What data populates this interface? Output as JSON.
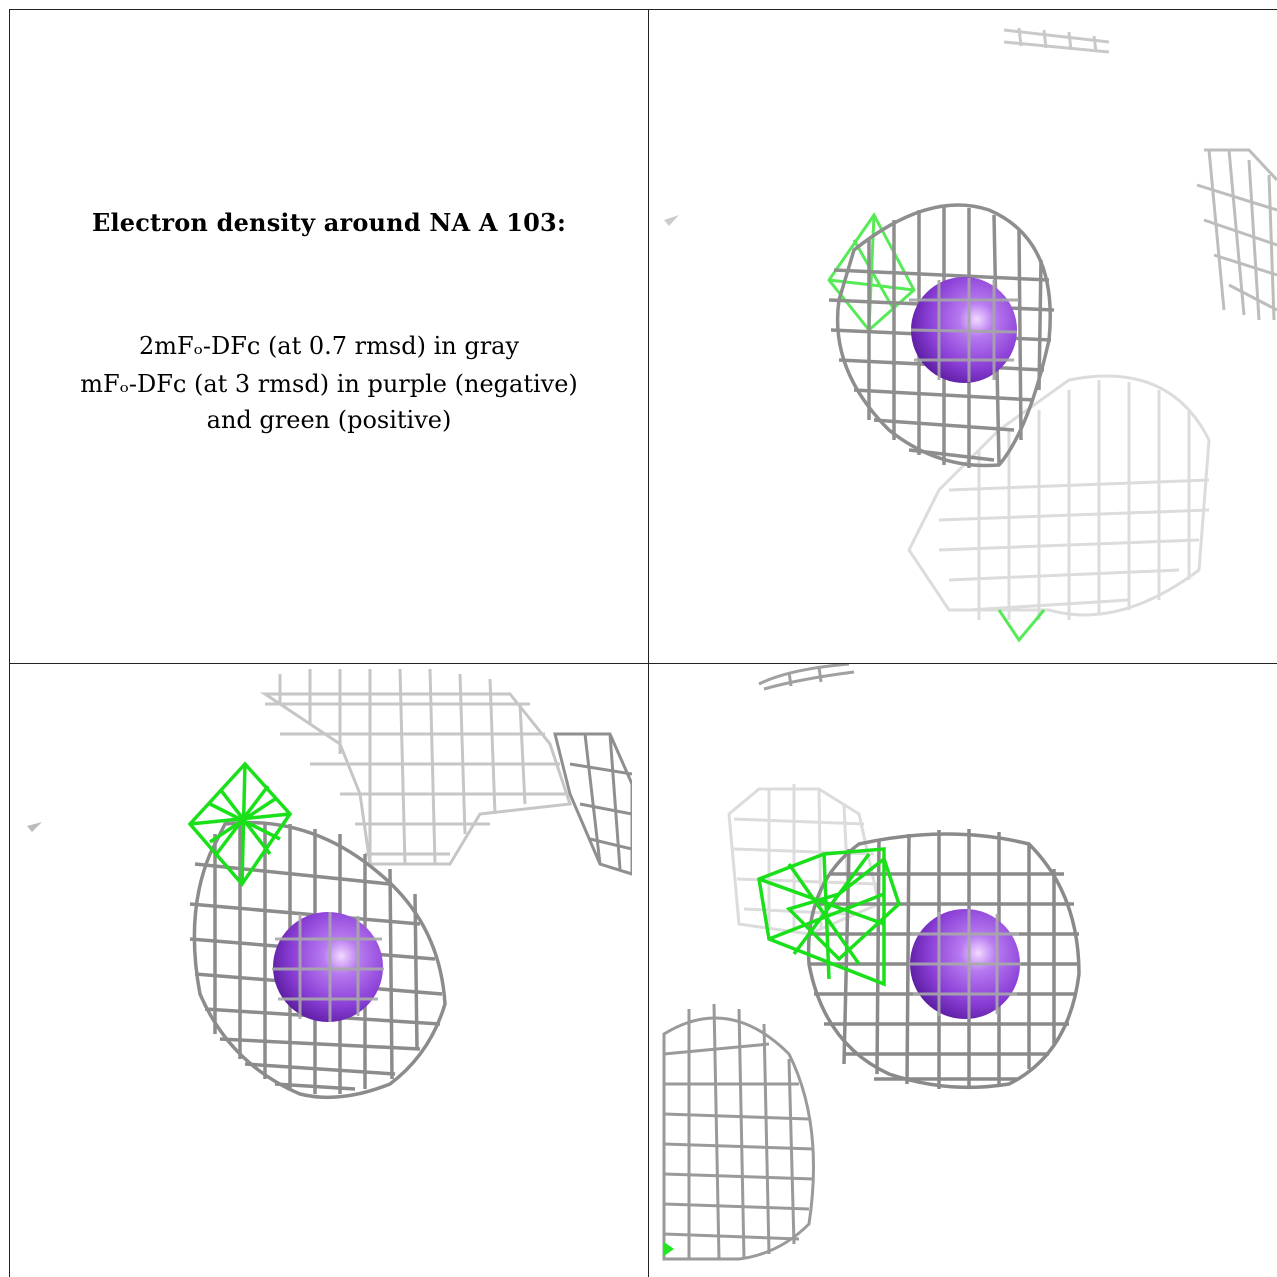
{
  "caption": {
    "title": "Electron density around NA A 103:",
    "line1": "2mFₒ-DFᴄ (at 0.7 rmsd) in gray",
    "line2": "mFₒ-DFᴄ (at 3 rmsd) in purple (negative)",
    "line3": "and green (positive)"
  },
  "colors": {
    "mesh_2fofc": "#9a9a9a",
    "mesh_faint": "#d6d6d6",
    "diff_positive": "#22e622",
    "sodium_sphere": "#9a4fe0"
  },
  "panels": [
    {
      "id": "view-top-right",
      "has_positive_density": true
    },
    {
      "id": "view-bottom-left",
      "has_positive_density": true
    },
    {
      "id": "view-bottom-right",
      "has_positive_density": true
    }
  ]
}
